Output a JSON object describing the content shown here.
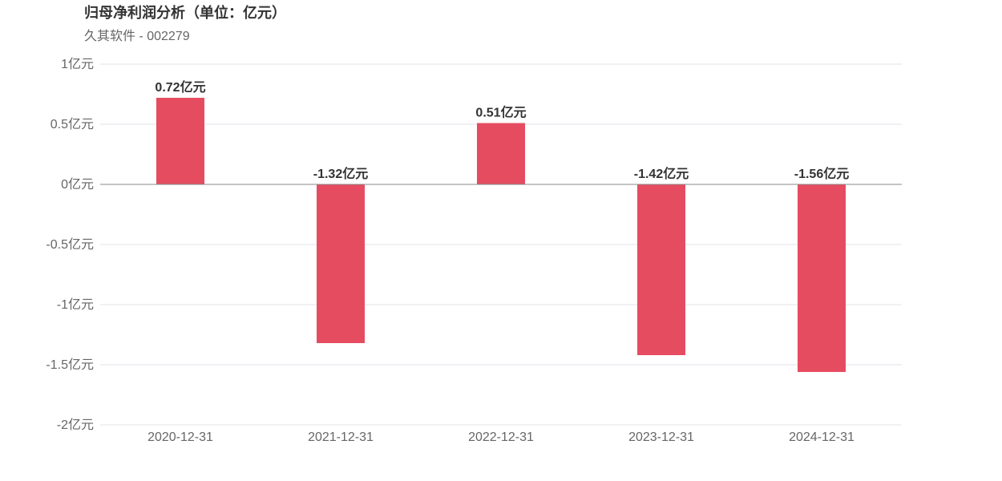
{
  "header": {
    "title": "归母净利润分析（单位：亿元）",
    "subtitle": "久其软件 - 002279"
  },
  "colors": {
    "bar": "#e64c60",
    "grid": "#e0e3ea",
    "zero_line": "#888888"
  },
  "chart_data": {
    "type": "bar",
    "title": "归母净利润分析（单位：亿元）",
    "subtitle": "久其软件 - 002279",
    "categories": [
      "2020-12-31",
      "2021-12-31",
      "2022-12-31",
      "2023-12-31",
      "2024-12-31"
    ],
    "values": [
      0.72,
      -1.32,
      0.51,
      -1.42,
      -1.56
    ],
    "data_labels": [
      "0.72亿元",
      "-1.32亿元",
      "0.51亿元",
      "-1.42亿元",
      "-1.56亿元"
    ],
    "yticks": [
      1,
      0.5,
      0,
      -0.5,
      -1,
      -1.5,
      -2
    ],
    "ytick_labels": [
      "1亿元",
      "0.5亿元",
      "0亿元",
      "-0.5亿元",
      "-1亿元",
      "-1.5亿元",
      "-2亿元"
    ],
    "ylim": [
      -2,
      1
    ],
    "grid": true,
    "legend": "none"
  }
}
